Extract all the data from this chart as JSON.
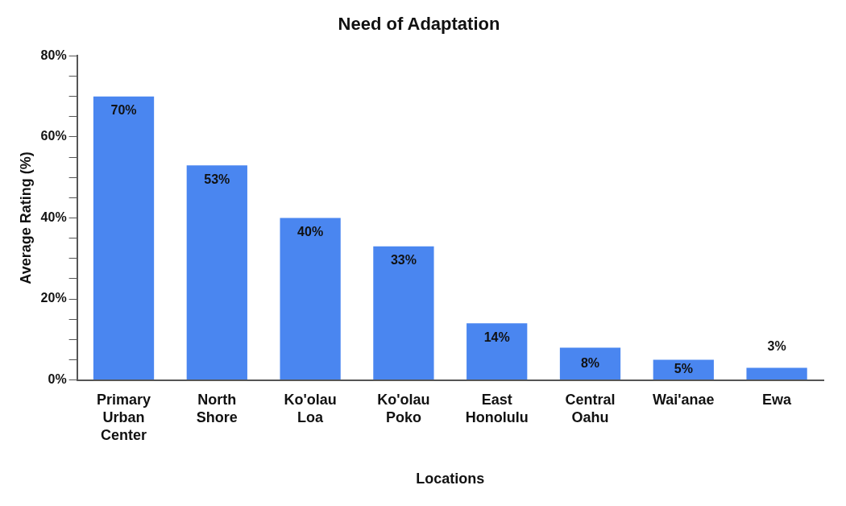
{
  "chart_data": {
    "type": "bar",
    "title": "Need of Adaptation",
    "xlabel": "Locations",
    "ylabel": "Average Rating (%)",
    "categories": [
      "Primary Urban Center",
      "North Shore",
      "Ko'olau Loa",
      "Ko'olau Poko",
      "East Honolulu",
      "Central Oahu",
      "Wai'anae",
      "Ewa"
    ],
    "values": [
      70,
      53,
      40,
      33,
      14,
      8,
      5,
      3
    ],
    "value_labels": [
      "70%",
      "53%",
      "40%",
      "33%",
      "14%",
      "8%",
      "5%",
      "3%"
    ],
    "color": "#4a86f0",
    "ylim": [
      0,
      80
    ],
    "yticks": [
      {
        "value": 0,
        "label": "0%"
      },
      {
        "value": 5,
        "label": null
      },
      {
        "value": 10,
        "label": null
      },
      {
        "value": 15,
        "label": null
      },
      {
        "value": 20,
        "label": "20%"
      },
      {
        "value": 25,
        "label": null
      },
      {
        "value": 30,
        "label": null
      },
      {
        "value": 35,
        "label": null
      },
      {
        "value": 40,
        "label": "40%"
      },
      {
        "value": 45,
        "label": null
      },
      {
        "value": 50,
        "label": null
      },
      {
        "value": 55,
        "label": null
      },
      {
        "value": 60,
        "label": "60%"
      },
      {
        "value": 65,
        "label": null
      },
      {
        "value": 70,
        "label": null
      },
      {
        "value": 75,
        "label": null
      },
      {
        "value": 80,
        "label": "80%"
      }
    ],
    "grid": false,
    "legend": false
  }
}
